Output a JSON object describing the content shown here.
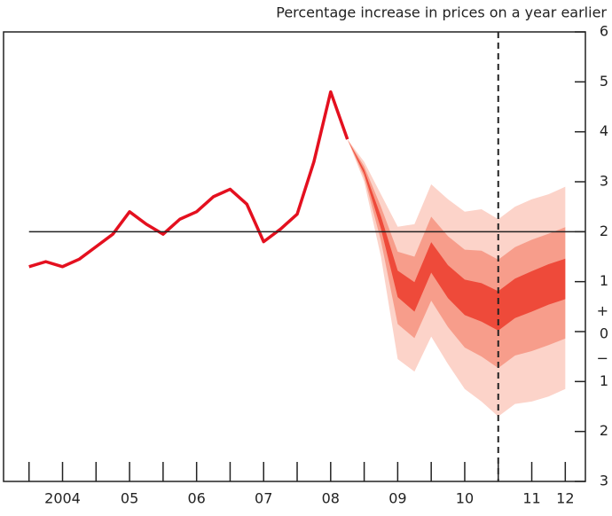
{
  "chart_data": {
    "type": "fan",
    "title": "Percentage increase in prices on a year earlier",
    "xlim": [
      2003.62,
      2012.3
    ],
    "xticks": [
      2004,
      2004.5,
      2005,
      2005.5,
      2006,
      2006.5,
      2007,
      2007.5,
      2008,
      2008.5,
      2009,
      2009.5,
      2010,
      2010.5,
      2011,
      2011.5,
      2012
    ],
    "xtick_labels": [
      {
        "value": 2004.5,
        "label": "2004"
      },
      {
        "value": 2005.5,
        "label": "05"
      },
      {
        "value": 2006.5,
        "label": "06"
      },
      {
        "value": 2007.5,
        "label": "07"
      },
      {
        "value": 2008.5,
        "label": "08"
      },
      {
        "value": 2009.5,
        "label": "09"
      },
      {
        "value": 2010.5,
        "label": "10"
      },
      {
        "value": 2011.5,
        "label": "11"
      },
      {
        "value": 2012,
        "label": "12"
      }
    ],
    "ylim": [
      -3,
      6
    ],
    "yticks": [
      6,
      5,
      4,
      3,
      2,
      1,
      0,
      {
        "value": -1,
        "label": "1"
      },
      {
        "value": -2,
        "label": "2"
      },
      {
        "value": -3,
        "label": "3"
      }
    ],
    "axis_signs": {
      "plus": "+",
      "minus": "−"
    },
    "hline": 2,
    "vline": 2011,
    "series": [
      {
        "color": "#e4101f",
        "x": [
          2004,
          2004.25,
          2004.5,
          2004.75,
          2005,
          2005.25,
          2005.5,
          2005.75,
          2006,
          2006.25,
          2006.5,
          2006.75,
          2007,
          2007.25,
          2007.5,
          2007.75,
          2008,
          2008.25,
          2008.5,
          2008.75
        ],
        "values": [
          1.3,
          1.4,
          1.3,
          1.45,
          1.7,
          1.95,
          2.4,
          2.15,
          1.95,
          2.25,
          2.4,
          2.7,
          2.85,
          2.55,
          1.8,
          2.05,
          2.35,
          3.4,
          4.8,
          3.85
        ]
      }
    ],
    "fan": {
      "x": [
        2008.75,
        2009,
        2009.25,
        2009.5,
        2009.75,
        2010,
        2010.25,
        2010.5,
        2010.75,
        2011,
        2011.25,
        2011.5,
        2011.75,
        2012
      ],
      "bands": [
        {
          "color": "#fcd3c9",
          "upper": [
            3.85,
            3.4,
            2.75,
            2.1,
            2.15,
            2.95,
            2.65,
            2.4,
            2.45,
            2.25,
            2.5,
            2.65,
            2.75,
            2.9
          ],
          "lower": [
            3.85,
            3.0,
            1.5,
            -0.55,
            -0.8,
            -0.1,
            -0.65,
            -1.15,
            -1.4,
            -1.7,
            -1.45,
            -1.4,
            -1.3,
            -1.15
          ]
        },
        {
          "color": "#f79d8b",
          "upper": [
            3.85,
            3.31,
            2.5,
            1.6,
            1.5,
            2.3,
            1.91,
            1.64,
            1.62,
            1.44,
            1.69,
            1.84,
            1.96,
            2.09
          ],
          "lower": [
            3.85,
            3.09,
            1.82,
            0.15,
            -0.13,
            0.62,
            0.09,
            -0.32,
            -0.5,
            -0.73,
            -0.48,
            -0.39,
            -0.27,
            -0.14
          ]
        },
        {
          "color": "#ee4a3a",
          "upper": [
            3.85,
            3.24,
            2.31,
            1.22,
            0.99,
            1.79,
            1.33,
            1.04,
            0.97,
            0.81,
            1.06,
            1.21,
            1.35,
            1.46
          ],
          "lower": [
            3.85,
            3.16,
            2.06,
            0.69,
            0.4,
            1.18,
            0.67,
            0.33,
            0.2,
            0.02,
            0.27,
            0.4,
            0.54,
            0.65
          ]
        }
      ]
    }
  }
}
